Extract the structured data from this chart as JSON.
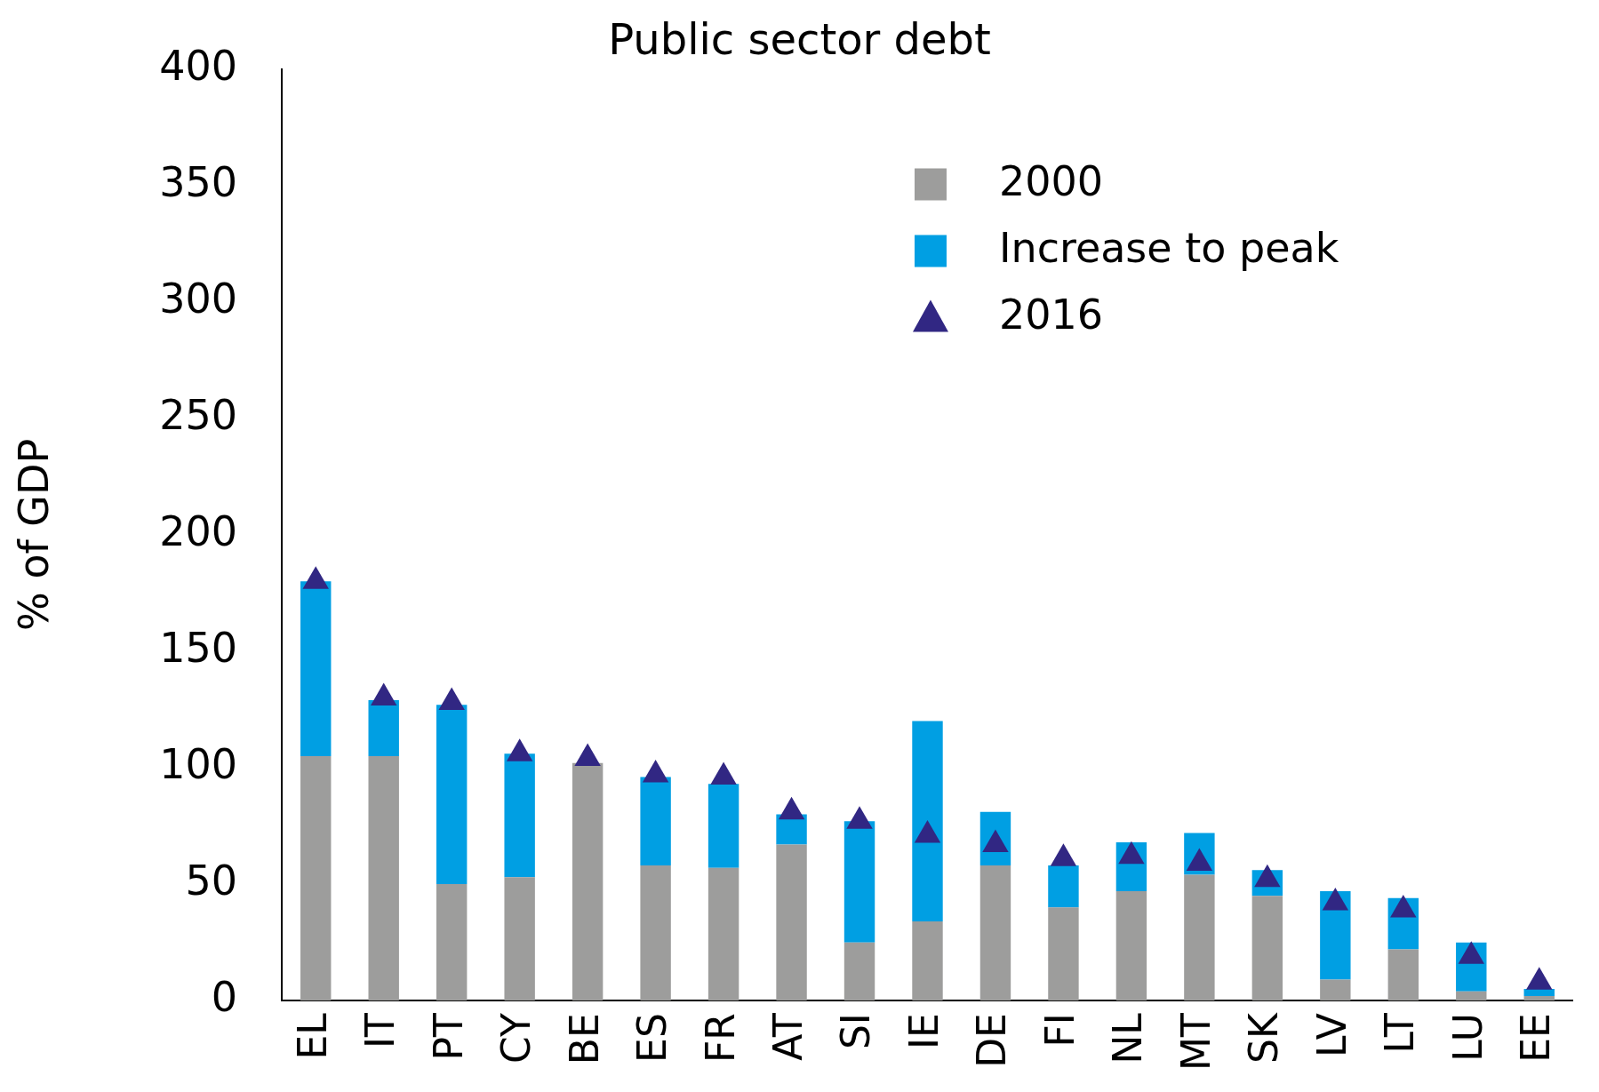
{
  "chart_data": {
    "type": "bar",
    "title": "Public sector debt",
    "ylabel": "% of GDP",
    "categories": [
      "EL",
      "IT",
      "PT",
      "CY",
      "BE",
      "ES",
      "FR",
      "AT",
      "SI",
      "IE",
      "DE",
      "FI",
      "NL",
      "MT",
      "SK",
      "LV",
      "LT",
      "LU",
      "EE"
    ],
    "stacked": true,
    "series": [
      {
        "name": "2000",
        "color": "#9d9d9c",
        "values": [
          105,
          105,
          50,
          53,
          102,
          58,
          57,
          67,
          25,
          34,
          58,
          40,
          47,
          54,
          45,
          9,
          22,
          4,
          2
        ]
      },
      {
        "name": "Increase to peak",
        "color": "#009fe3",
        "values": [
          75,
          24,
          77,
          53,
          0,
          38,
          36,
          13,
          52,
          86,
          23,
          18,
          21,
          18,
          11,
          38,
          22,
          21,
          3
        ]
      },
      {
        "name": "2016",
        "type": "scatter",
        "color": "#312783",
        "marker": "triangle",
        "x": [
          "EL",
          "IT",
          "PT",
          "CY",
          "BE",
          "ES",
          "FR",
          "AT",
          "SI",
          "IE",
          "DE",
          "FI",
          "NL",
          "MT",
          "SK",
          "LV",
          "LT",
          "LU",
          "EE"
        ],
        "values": [
          180,
          130,
          128,
          106,
          104,
          97,
          96,
          81,
          77,
          71,
          67,
          61,
          62,
          59,
          52,
          42,
          39,
          19,
          8
        ]
      }
    ],
    "ylim": [
      0,
      400
    ],
    "yticks": [
      0,
      50,
      100,
      150,
      200,
      250,
      300,
      350,
      400
    ],
    "grid": false,
    "legend": "top right"
  }
}
